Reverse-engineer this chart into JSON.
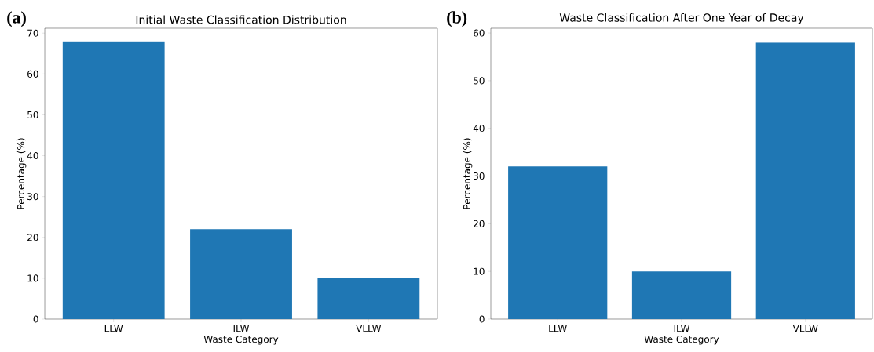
{
  "chart_data": [
    {
      "type": "bar",
      "title": "Initial Waste Classification Distribution",
      "xlabel": "Waste Category",
      "ylabel": "Percentage (%)",
      "categories": [
        "LLW",
        "ILW",
        "VLLW"
      ],
      "values": [
        68,
        22,
        10
      ],
      "color": "#1f77b4",
      "ylim": [
        0,
        71.2
      ],
      "yticks": [
        0,
        10,
        20,
        30,
        40,
        50,
        60,
        70
      ],
      "annotations": [
        "(a)"
      ]
    },
    {
      "type": "bar",
      "title": "Waste Classification After One Year of Decay",
      "xlabel": "Waste Category",
      "ylabel": "Percentage (%)",
      "categories": [
        "LLW",
        "ILW",
        "VLLW"
      ],
      "values": [
        32,
        10,
        58
      ],
      "color": "#1f77b4",
      "ylim": [
        0,
        61
      ],
      "yticks": [
        0,
        10,
        20,
        30,
        40,
        50,
        60
      ],
      "annotations": [
        "(b)"
      ]
    }
  ]
}
